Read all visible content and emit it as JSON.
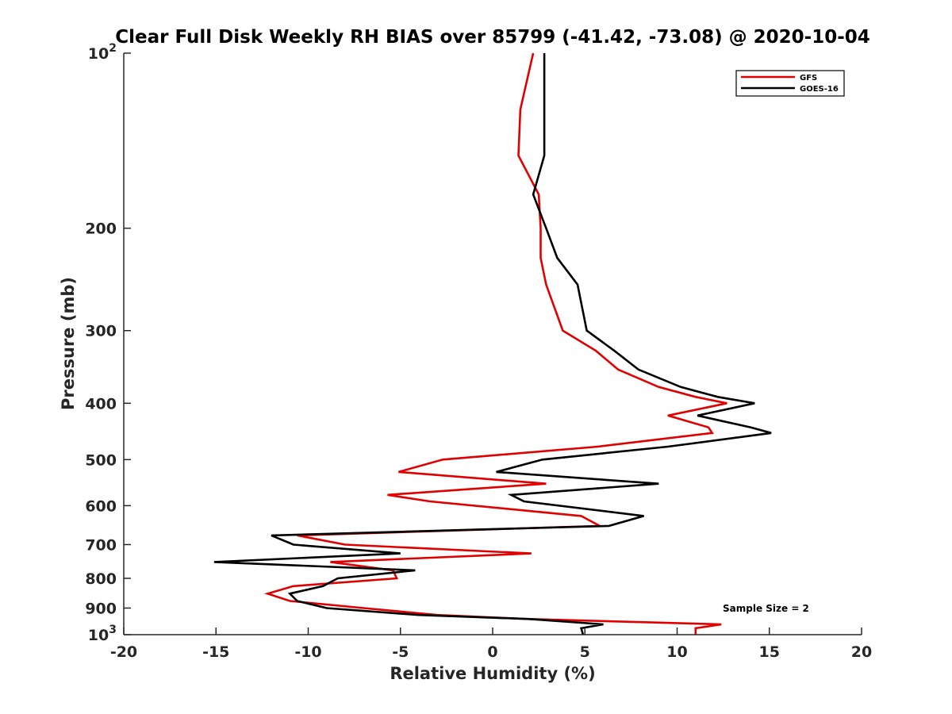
{
  "chart_data": {
    "type": "line",
    "title": "Clear Full Disk Weekly RH BIAS over 85799 (-41.42, -73.08) @ 2020-10-04",
    "xlabel": "Relative Humidity (%)",
    "ylabel": "Pressure (mb)",
    "xlim": [
      -20,
      20
    ],
    "ylim": [
      100,
      1000
    ],
    "y_scale": "log",
    "y_reversed": true,
    "grid": false,
    "legend_position": "top-right",
    "x_ticks": [
      -20,
      -15,
      -10,
      -5,
      0,
      5,
      10,
      15,
      20
    ],
    "x_tick_labels": [
      "-20",
      "-15",
      "-10",
      "-5",
      "0",
      "5",
      "10",
      "15",
      "20"
    ],
    "y_ticks": [
      100,
      200,
      300,
      400,
      500,
      600,
      700,
      800,
      900,
      1000
    ],
    "y_tick_labels": [
      {
        "base": "10",
        "exp": "2"
      },
      {
        "base": "200",
        "exp": ""
      },
      {
        "base": "300",
        "exp": ""
      },
      {
        "base": "400",
        "exp": ""
      },
      {
        "base": "500",
        "exp": ""
      },
      {
        "base": "600",
        "exp": ""
      },
      {
        "base": "700",
        "exp": ""
      },
      {
        "base": "800",
        "exp": ""
      },
      {
        "base": "900",
        "exp": ""
      },
      {
        "base": "10",
        "exp": "3"
      }
    ],
    "annotation": "Sample Size = 2",
    "series": [
      {
        "name": "GFS",
        "color": "#e00000",
        "points": [
          [
            2.2,
            100
          ],
          [
            1.5,
            125
          ],
          [
            1.4,
            150
          ],
          [
            2.5,
            175
          ],
          [
            2.6,
            200
          ],
          [
            2.6,
            225
          ],
          [
            2.9,
            250
          ],
          [
            3.8,
            300
          ],
          [
            5.6,
            325
          ],
          [
            6.8,
            350
          ],
          [
            9.0,
            375
          ],
          [
            11.0,
            390
          ],
          [
            12.7,
            400
          ],
          [
            9.5,
            420
          ],
          [
            11.7,
            440
          ],
          [
            11.9,
            450
          ],
          [
            5.7,
            475
          ],
          [
            -2.7,
            500
          ],
          [
            -5.1,
            525
          ],
          [
            2.9,
            550
          ],
          [
            -5.7,
            575
          ],
          [
            -3.4,
            590
          ],
          [
            4.8,
            625
          ],
          [
            5.8,
            650
          ],
          [
            -10.6,
            675
          ],
          [
            -8.0,
            700
          ],
          [
            2.1,
            725
          ],
          [
            -8.8,
            750
          ],
          [
            -5.4,
            775
          ],
          [
            -5.2,
            800
          ],
          [
            -10.8,
            825
          ],
          [
            -12.2,
            850
          ],
          [
            -11.0,
            875
          ],
          [
            -7.0,
            900
          ],
          [
            -3.0,
            925
          ],
          [
            2.0,
            940
          ],
          [
            12.4,
            960
          ],
          [
            11.0,
            975
          ],
          [
            11.0,
            1000
          ]
        ]
      },
      {
        "name": "GOES-16",
        "color": "#000000",
        "points": [
          [
            2.8,
            100
          ],
          [
            2.8,
            125
          ],
          [
            2.8,
            150
          ],
          [
            2.2,
            175
          ],
          [
            2.9,
            200
          ],
          [
            3.5,
            225
          ],
          [
            4.6,
            250
          ],
          [
            5.1,
            300
          ],
          [
            6.6,
            325
          ],
          [
            7.9,
            350
          ],
          [
            10.2,
            375
          ],
          [
            12.2,
            390
          ],
          [
            14.2,
            400
          ],
          [
            11.1,
            420
          ],
          [
            14.0,
            440
          ],
          [
            15.1,
            450
          ],
          [
            9.5,
            475
          ],
          [
            2.7,
            500
          ],
          [
            0.2,
            525
          ],
          [
            9.0,
            550
          ],
          [
            1.0,
            575
          ],
          [
            1.7,
            590
          ],
          [
            8.2,
            625
          ],
          [
            6.3,
            650
          ],
          [
            -12.0,
            675
          ],
          [
            -10.8,
            700
          ],
          [
            -5.0,
            725
          ],
          [
            -15.1,
            750
          ],
          [
            -4.2,
            775
          ],
          [
            -8.4,
            800
          ],
          [
            -9.2,
            825
          ],
          [
            -11.0,
            850
          ],
          [
            -10.6,
            875
          ],
          [
            -9.0,
            900
          ],
          [
            -4.0,
            925
          ],
          [
            2.0,
            940
          ],
          [
            6.0,
            960
          ],
          [
            4.8,
            975
          ],
          [
            4.9,
            1000
          ]
        ]
      }
    ]
  },
  "legend": {
    "items": [
      {
        "label": "GFS",
        "color": "#e00000"
      },
      {
        "label": "GOES-16",
        "color": "#000000"
      }
    ]
  }
}
